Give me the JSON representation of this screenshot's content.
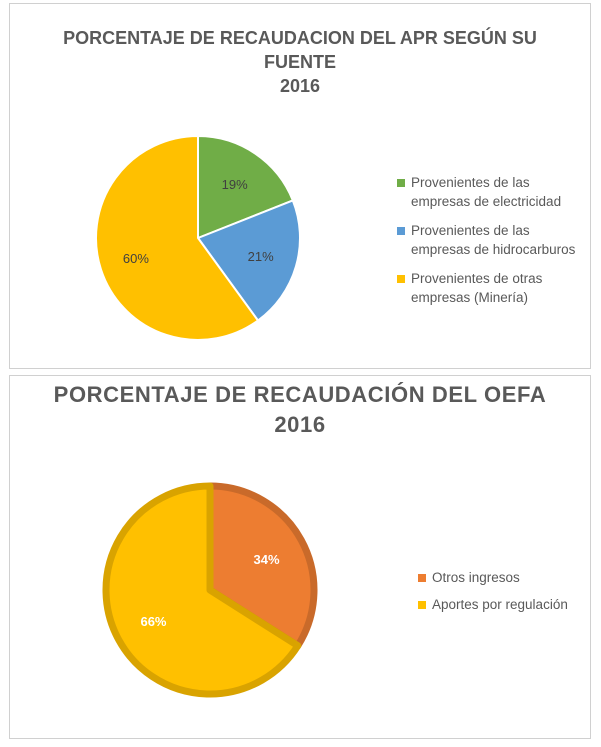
{
  "charts": [
    {
      "title_lines": [
        "PORCENTAJE DE RECAUDACION DEL APR SEGÚN SU",
        "FUENTE",
        "2016"
      ],
      "legend": [
        {
          "line1": "Provenientes de las",
          "line2": "empresas de electricidad",
          "color": "#70ad47"
        },
        {
          "line1": "Provenientes de las",
          "line2": "empresas de hidrocarburos",
          "color": "#5b9bd5"
        },
        {
          "line1": "Provenientes de otras",
          "line2": "empresas (Minería)",
          "color": "#ffc000"
        }
      ]
    },
    {
      "title_lines": [
        "PORCENTAJE DE RECAUDACIÓN DEL OEFA",
        "2016"
      ],
      "legend": [
        {
          "line1": "Otros ingresos",
          "color": "#ed7d31"
        },
        {
          "line1": "Aportes por regulación",
          "color": "#ffc000"
        }
      ]
    }
  ],
  "chart_data": [
    {
      "type": "pie",
      "title": "PORCENTAJE DE RECAUDACION DEL APR SEGÚN SU FUENTE 2016",
      "categories": [
        "Provenientes de las empresas de electricidad",
        "Provenientes de las empresas de hidrocarburos",
        "Provenientes de otras empresas (Minería)"
      ],
      "values": [
        19,
        21,
        60
      ],
      "labels": [
        "19%",
        "21%",
        "60%"
      ],
      "colors": [
        "#70ad47",
        "#5b9bd5",
        "#ffc000"
      ],
      "legend_position": "right"
    },
    {
      "type": "pie",
      "title": "PORCENTAJE DE RECAUDACIÓN DEL OEFA 2016",
      "categories": [
        "Otros ingresos",
        "Aportes por regulación"
      ],
      "values": [
        34,
        66
      ],
      "labels": [
        "34%",
        "66%"
      ],
      "colors": [
        "#ed7d31",
        "#ffc000"
      ],
      "legend_position": "right"
    }
  ]
}
